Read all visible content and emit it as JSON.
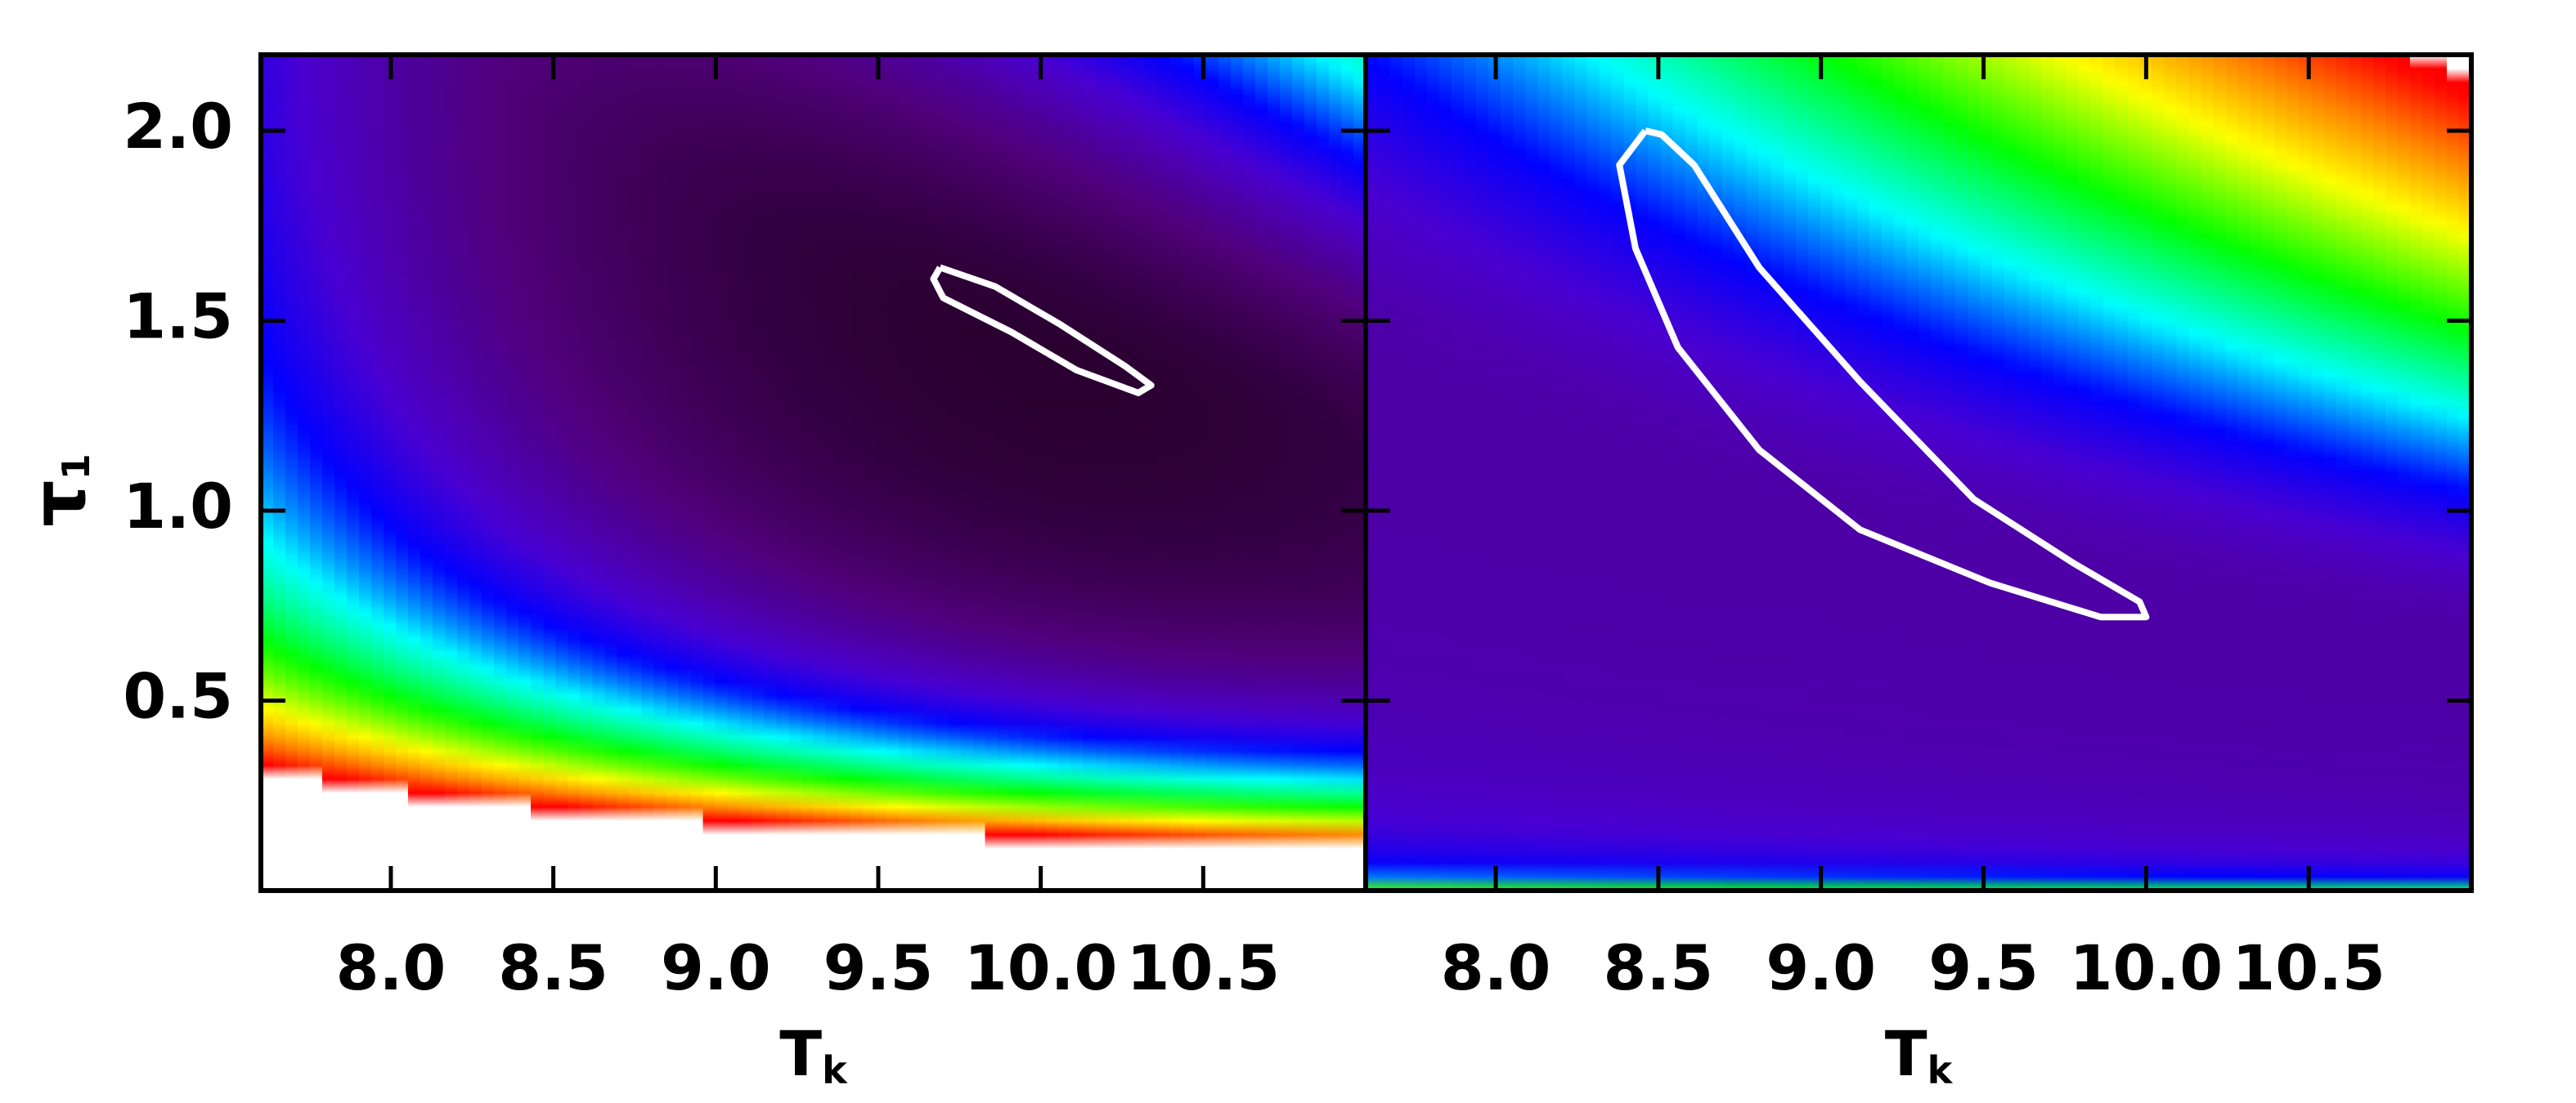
{
  "chart_data": [
    {
      "type": "contour",
      "xlabel": "T",
      "xlabel_sub": "k",
      "ylabel": "τ",
      "ylabel_sub": "1",
      "xlim": [
        7.6,
        11.0
      ],
      "ylim": [
        0,
        2.2
      ],
      "xticks": [
        {
          "value": 8,
          "label": "8.0"
        },
        8.5,
        {
          "value": 9,
          "label": "9.0"
        },
        9.5,
        {
          "value": 10,
          "label": "10.0"
        },
        10.5
      ],
      "yticks": [
        0.5,
        {
          "value": 1,
          "label": "1.0"
        },
        1.5,
        {
          "value": 2,
          "label": "2.0"
        }
      ],
      "contour": {
        "color": "#ffffff",
        "x": [
          9.69,
          9.86,
          10.06,
          10.26,
          10.34,
          10.3,
          10.11,
          9.91,
          9.7,
          9.67,
          9.69
        ],
        "y": [
          1.64,
          1.59,
          1.49,
          1.38,
          1.33,
          1.31,
          1.37,
          1.47,
          1.56,
          1.61,
          1.64
        ]
      }
    },
    {
      "type": "contour",
      "xlabel": "T",
      "xlabel_sub": "k",
      "xlim": [
        7.6,
        11.0
      ],
      "ylim": [
        0,
        2.2
      ],
      "xticks": [
        {
          "value": 8,
          "label": "8.0"
        },
        8.5,
        {
          "value": 9,
          "label": "9.0"
        },
        9.5,
        {
          "value": 10,
          "label": "10.0"
        },
        10.5
      ],
      "yticks": [
        0.5,
        {
          "value": 1,
          "label": "1.0"
        },
        1.5,
        {
          "value": 2,
          "label": "2.0"
        }
      ],
      "contour": {
        "color": "#ffffff",
        "x": [
          8.46,
          8.38,
          8.43,
          8.56,
          8.81,
          9.12,
          9.52,
          9.86,
          10.0,
          9.98,
          9.78,
          9.47,
          9.12,
          8.81,
          8.61,
          8.51,
          8.46
        ],
        "y": [
          2.0,
          1.91,
          1.69,
          1.43,
          1.16,
          0.95,
          0.81,
          0.72,
          0.72,
          0.76,
          0.86,
          1.03,
          1.34,
          1.64,
          1.91,
          1.99,
          2.0
        ]
      }
    }
  ]
}
